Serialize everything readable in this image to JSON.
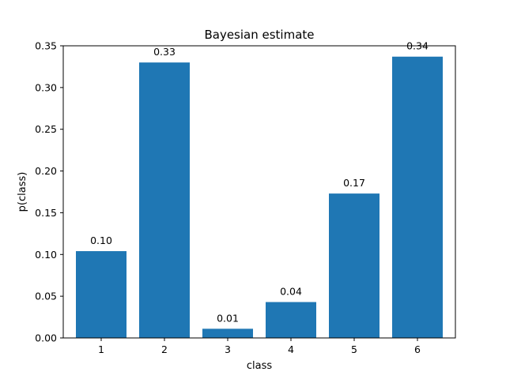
{
  "chart_data": {
    "type": "bar",
    "title": "Bayesian estimate",
    "xlabel": "class",
    "ylabel": "p(class)",
    "categories": [
      "1",
      "2",
      "3",
      "4",
      "5",
      "6"
    ],
    "values": [
      0.104,
      0.33,
      0.011,
      0.043,
      0.173,
      0.337
    ],
    "data_labels": [
      "0.10",
      "0.33",
      "0.01",
      "0.04",
      "0.17",
      "0.34"
    ],
    "ylim": [
      0,
      0.35
    ],
    "yticks": [
      0.0,
      0.05,
      0.1,
      0.15,
      0.2,
      0.25,
      0.3,
      0.35
    ],
    "ytick_labels": [
      "0.00",
      "0.05",
      "0.10",
      "0.15",
      "0.20",
      "0.25",
      "0.30",
      "0.35"
    ],
    "bar_color": "#1f77b4",
    "grid": false,
    "legend": "none"
  }
}
